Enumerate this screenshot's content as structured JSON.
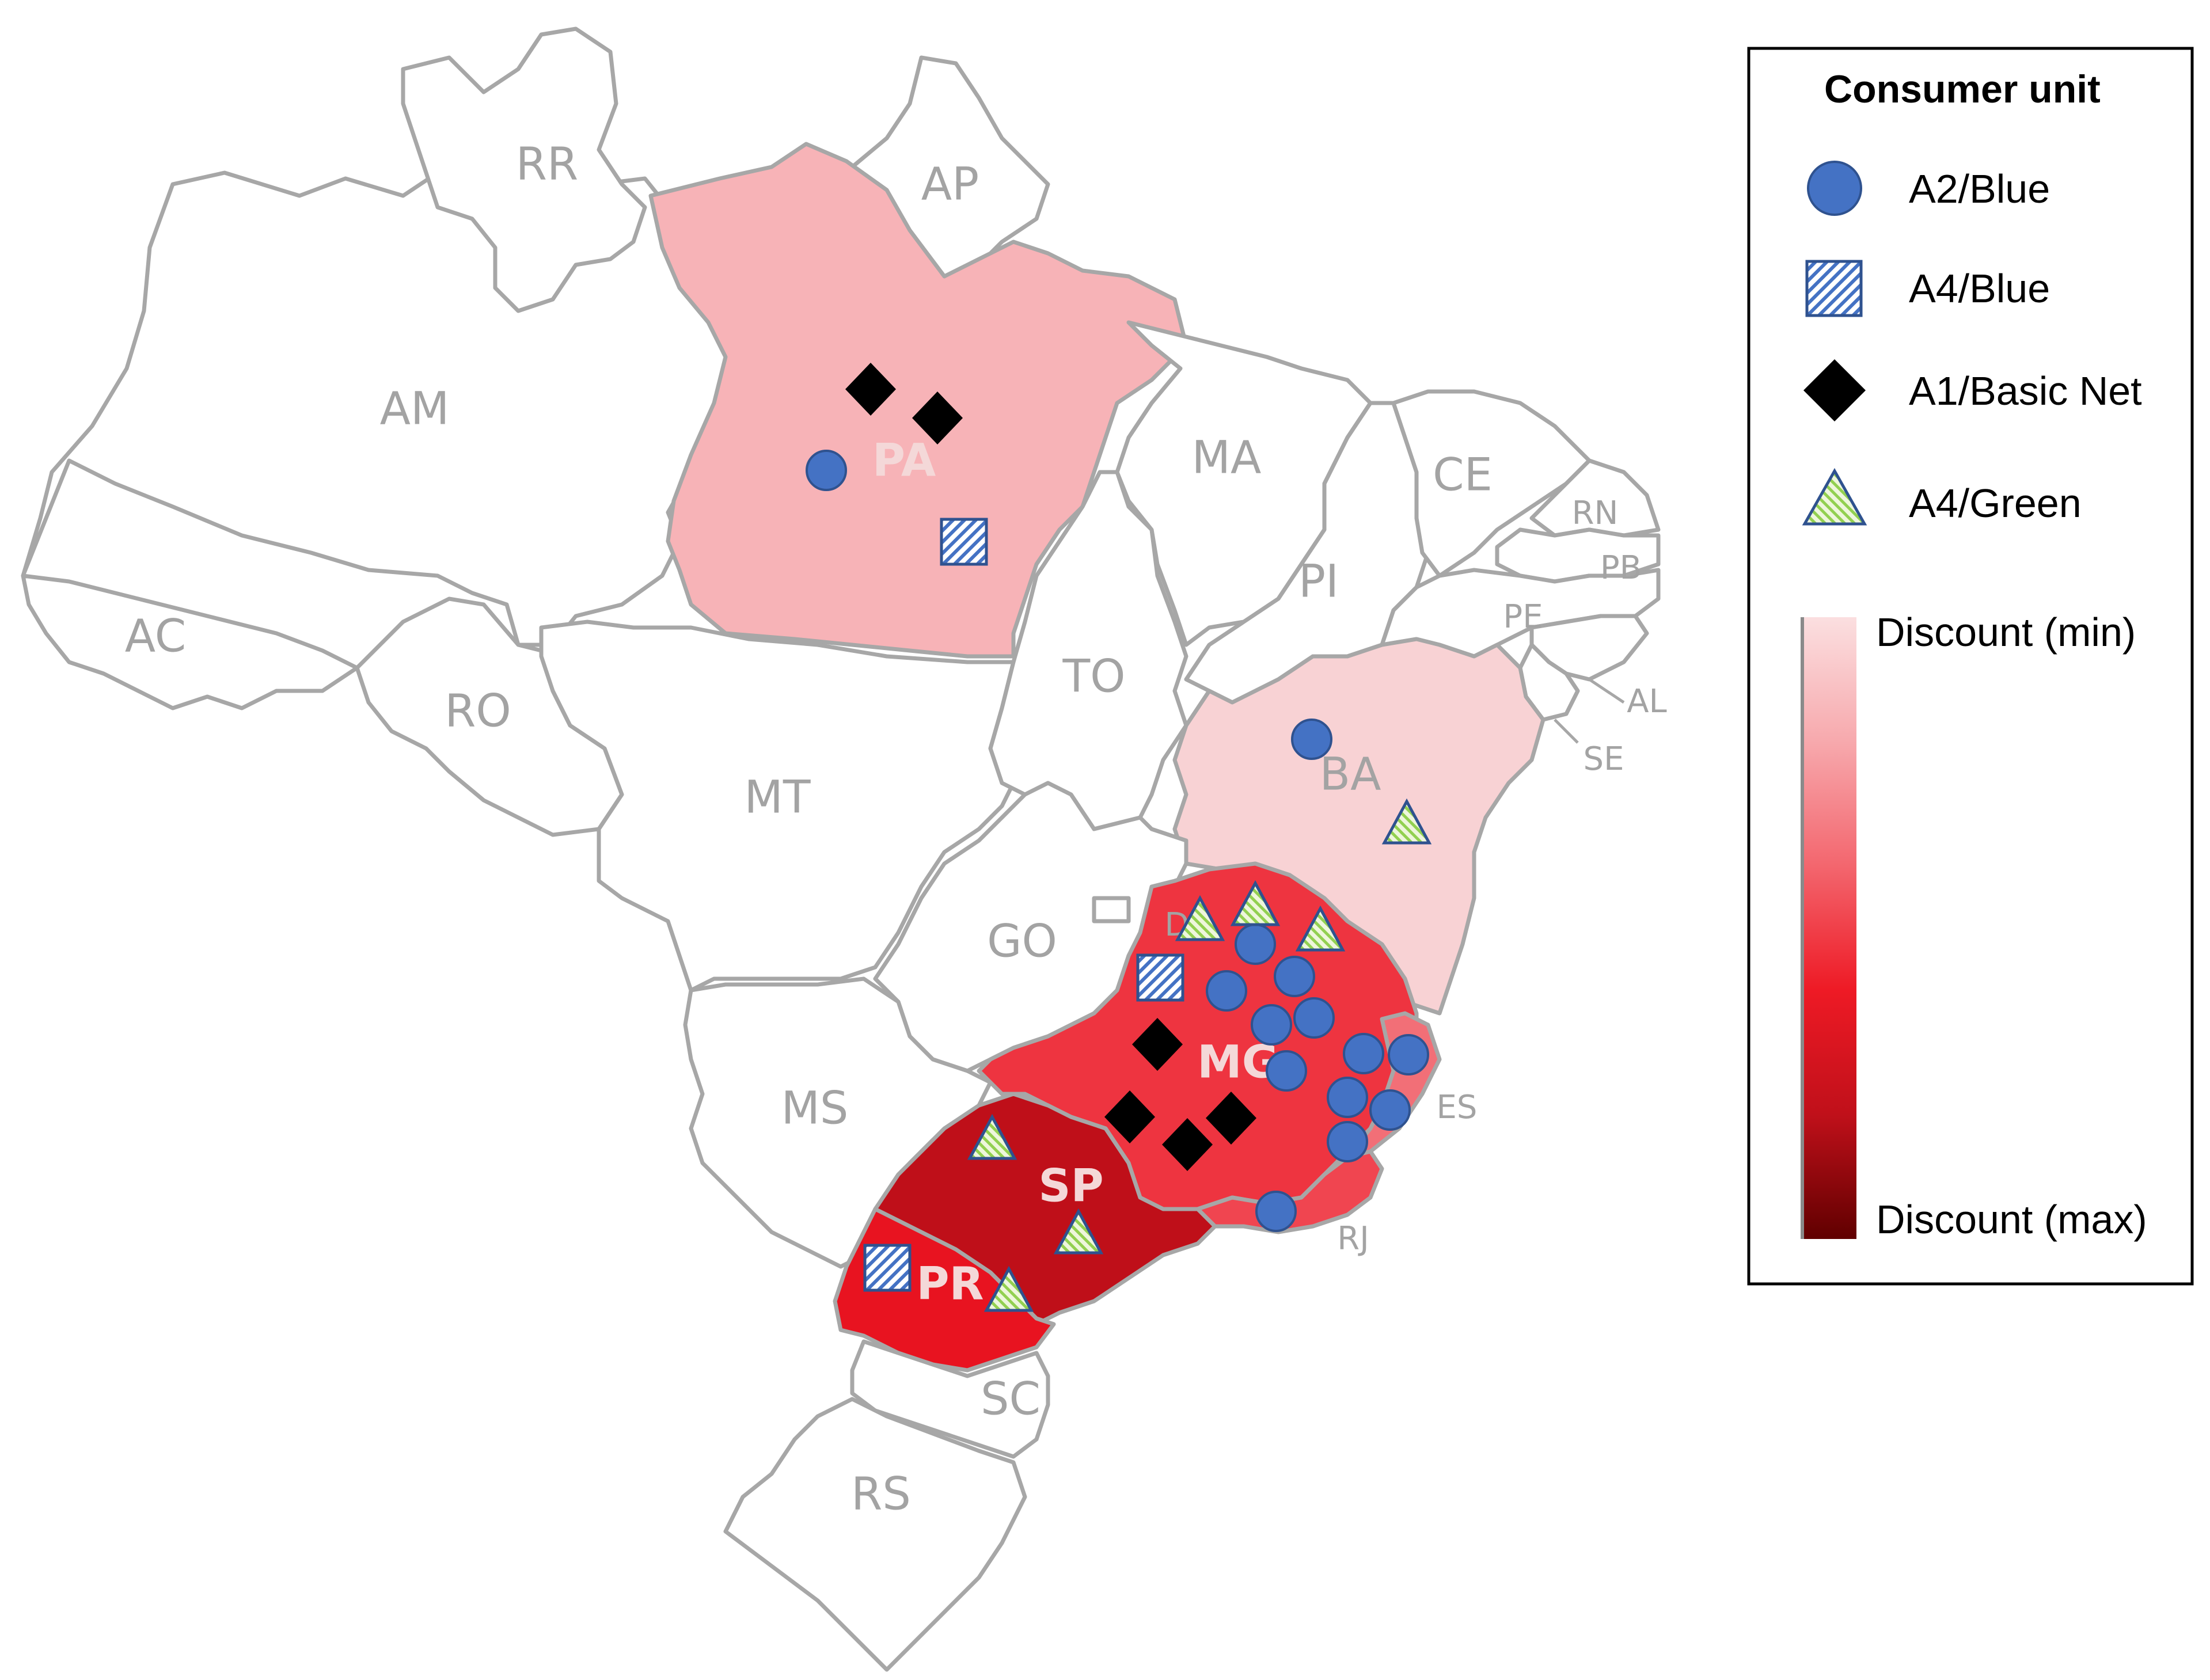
{
  "map": {
    "states": [
      {
        "code": "AM",
        "fill": "#ffffff"
      },
      {
        "code": "RR",
        "fill": "#ffffff"
      },
      {
        "code": "AP",
        "fill": "#ffffff"
      },
      {
        "code": "PA",
        "fill": "#f7b3b7"
      },
      {
        "code": "AC",
        "fill": "#ffffff"
      },
      {
        "code": "RO",
        "fill": "#ffffff"
      },
      {
        "code": "MT",
        "fill": "#ffffff"
      },
      {
        "code": "TO",
        "fill": "#ffffff"
      },
      {
        "code": "MA",
        "fill": "#ffffff"
      },
      {
        "code": "PI",
        "fill": "#ffffff"
      },
      {
        "code": "CE",
        "fill": "#ffffff"
      },
      {
        "code": "RN",
        "fill": "#ffffff"
      },
      {
        "code": "PB",
        "fill": "#ffffff"
      },
      {
        "code": "PE",
        "fill": "#ffffff"
      },
      {
        "code": "AL",
        "fill": "#ffffff"
      },
      {
        "code": "SE",
        "fill": "#ffffff"
      },
      {
        "code": "BA",
        "fill": "#f8d2d4"
      },
      {
        "code": "GO",
        "fill": "#ffffff"
      },
      {
        "code": "DF",
        "fill": "#ffffff"
      },
      {
        "code": "MG",
        "fill": "#ee3440"
      },
      {
        "code": "ES",
        "fill": "#f26f77"
      },
      {
        "code": "RJ",
        "fill": "#f04550"
      },
      {
        "code": "MS",
        "fill": "#ffffff"
      },
      {
        "code": "SP",
        "fill": "#bf0f19"
      },
      {
        "code": "PR",
        "fill": "#e81320"
      },
      {
        "code": "SC",
        "fill": "#ffffff"
      },
      {
        "code": "RS",
        "fill": "#ffffff"
      }
    ]
  },
  "legend": {
    "title": "Consumer unit",
    "items": [
      {
        "label": "A2/Blue",
        "icon": "circle-marker-icon",
        "color": "#4472c4"
      },
      {
        "label": "A4/Blue",
        "icon": "hatched-square-marker-icon",
        "color": "#4472c4"
      },
      {
        "label": "A1/Basic Net",
        "icon": "diamond-marker-icon",
        "color": "#000000"
      },
      {
        "label": "A4/Green",
        "icon": "hatched-triangle-marker-icon",
        "color": "#92d050"
      }
    ],
    "scale": {
      "min_label": "Discount (min)",
      "max_label": "Discount (max)",
      "colors": [
        "#fbdfe0",
        "#f7a9ad",
        "#f3666e",
        "#ee1a25",
        "#c0101a",
        "#600000"
      ]
    }
  },
  "markers": {
    "a2_blue": [
      {
        "state": "PA"
      },
      {
        "state": "BA"
      },
      {
        "state": "MG"
      },
      {
        "state": "MG"
      },
      {
        "state": "MG"
      },
      {
        "state": "MG"
      },
      {
        "state": "MG"
      },
      {
        "state": "MG"
      },
      {
        "state": "MG"
      },
      {
        "state": "MG"
      },
      {
        "state": "MG"
      },
      {
        "state": "MG"
      },
      {
        "state": "MG"
      },
      {
        "state": "RJ"
      }
    ],
    "a4_blue": [
      {
        "state": "PA"
      },
      {
        "state": "MG"
      },
      {
        "state": "PR"
      }
    ],
    "a1_basic_net": [
      {
        "state": "PA"
      },
      {
        "state": "PA"
      },
      {
        "state": "MG"
      },
      {
        "state": "MG"
      },
      {
        "state": "MG"
      },
      {
        "state": "MG"
      }
    ],
    "a4_green": [
      {
        "state": "BA"
      },
      {
        "state": "MG"
      },
      {
        "state": "MG"
      },
      {
        "state": "MG"
      },
      {
        "state": "SP"
      },
      {
        "state": "SP"
      },
      {
        "state": "PR"
      }
    ]
  }
}
